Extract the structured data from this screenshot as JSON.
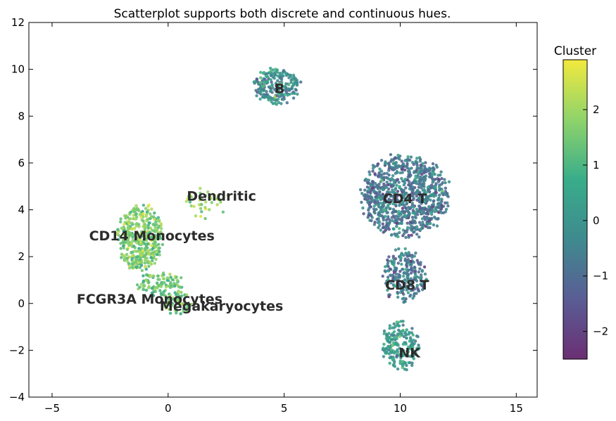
{
  "chart_data": {
    "type": "scatter",
    "title": "Scatterplot supports both discrete and continuous hues.",
    "xlabel": "",
    "ylabel": "",
    "xlim": [
      -6,
      15.9
    ],
    "ylim": [
      -4,
      12
    ],
    "x_ticks": [
      -5,
      0,
      5,
      10,
      15
    ],
    "y_ticks": [
      -4,
      -2,
      0,
      2,
      4,
      6,
      8,
      10,
      12
    ],
    "x_tick_labels": [
      "−5",
      "0",
      "5",
      "10",
      "15"
    ],
    "y_tick_labels": [
      "−4",
      "−2",
      "0",
      "2",
      "4",
      "6",
      "8",
      "10",
      "12"
    ],
    "grid": false,
    "colormap": "viridis",
    "colorbar": {
      "title": "Cluster",
      "range": [
        -2.5,
        2.9
      ],
      "ticks": [
        -2,
        -1,
        0,
        1,
        2
      ],
      "tick_labels": [
        "−2",
        "−1",
        "0",
        "1",
        "2"
      ]
    },
    "clusters": [
      {
        "name": "B",
        "center": [
          4.7,
          9.3
        ],
        "spread": [
          0.85,
          0.65
        ],
        "n": 230,
        "hue_mean": -0.2,
        "hue_sd": 0.7
      },
      {
        "name": "CD4 T",
        "center": [
          10.2,
          4.6
        ],
        "spread": [
          1.6,
          1.5
        ],
        "n": 900,
        "hue_mean": -0.7,
        "hue_sd": 0.6
      },
      {
        "name": "CD8 T",
        "center": [
          10.2,
          1.2
        ],
        "spread": [
          0.8,
          1.0
        ],
        "n": 230,
        "hue_mean": -0.7,
        "hue_sd": 0.6
      },
      {
        "name": "NK",
        "center": [
          10.0,
          -1.8
        ],
        "spread": [
          0.7,
          0.9
        ],
        "n": 200,
        "hue_mean": 0.3,
        "hue_sd": 0.6
      },
      {
        "name": "CD14 Monocytes",
        "center": [
          -1.2,
          2.8
        ],
        "spread": [
          0.85,
          1.25
        ],
        "n": 420,
        "hue_mean": 1.6,
        "hue_sd": 0.5
      },
      {
        "name": "Dendritic",
        "center": [
          1.6,
          4.3
        ],
        "spread": [
          0.9,
          0.6
        ],
        "n": 40,
        "hue_mean": 1.8,
        "hue_sd": 0.5
      },
      {
        "name": "FCGR3A Monocytes",
        "center": [
          -0.3,
          0.8
        ],
        "spread": [
          0.9,
          0.45
        ],
        "n": 110,
        "hue_mean": 1.4,
        "hue_sd": 0.5
      },
      {
        "name": "Megakaryocytes",
        "center": [
          0.4,
          0.0
        ],
        "spread": [
          0.55,
          0.45
        ],
        "n": 60,
        "hue_mean": 1.4,
        "hue_sd": 0.6
      }
    ],
    "labels": [
      {
        "text": "B",
        "x": 4.8,
        "y": 9.2
      },
      {
        "text": "CD4 T",
        "x": 10.2,
        "y": 4.5
      },
      {
        "text": "CD8 T",
        "x": 10.3,
        "y": 0.8
      },
      {
        "text": "NK",
        "x": 10.4,
        "y": -2.1
      },
      {
        "text": "CD14 Monocytes",
        "x": -0.7,
        "y": 2.9
      },
      {
        "text": "Dendritic",
        "x": 2.3,
        "y": 4.6
      },
      {
        "text": "FCGR3A Monocytes",
        "x": -0.8,
        "y": 0.2
      },
      {
        "text": "Megakaryocytes",
        "x": 2.3,
        "y": -0.1
      }
    ]
  }
}
